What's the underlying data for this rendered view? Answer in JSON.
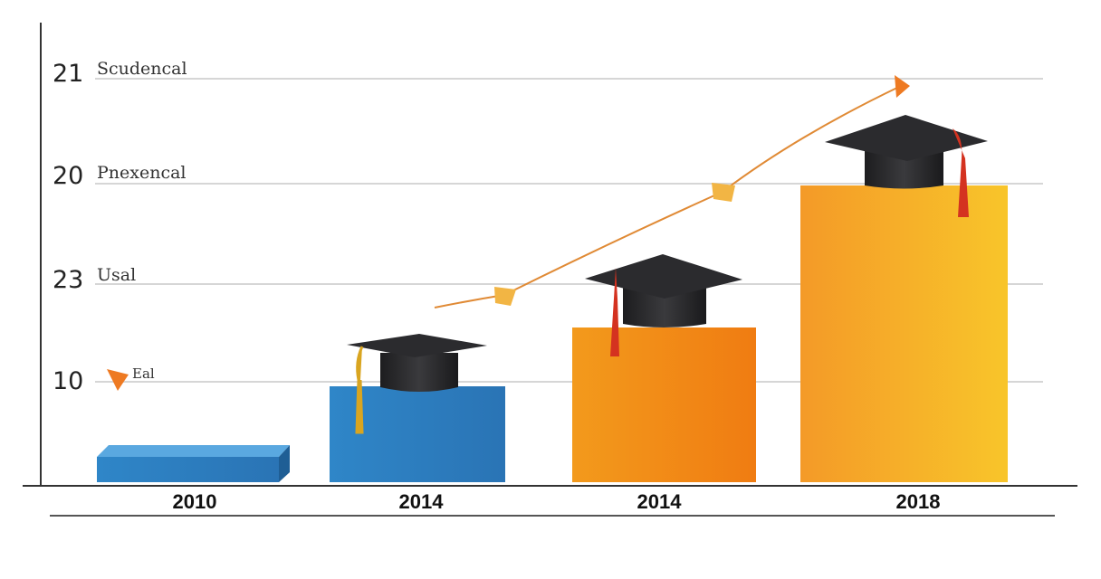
{
  "axis": {
    "ticks": [
      {
        "number": "21",
        "caption": "Scudencal"
      },
      {
        "number": "20",
        "caption": "Pnexencal"
      },
      {
        "number": "23",
        "caption": "Usal"
      },
      {
        "number": "10",
        "caption": "Eal"
      }
    ]
  },
  "categories": [
    "2010",
    "2014",
    "2014",
    "2018"
  ]
}
